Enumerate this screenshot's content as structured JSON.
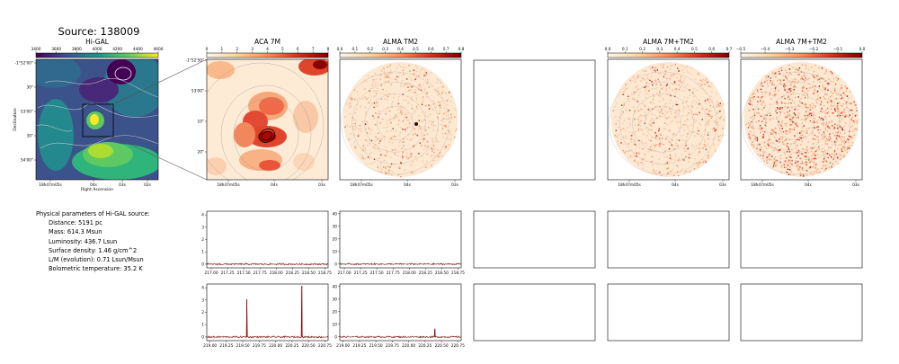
{
  "figure": {
    "source_title": "Source: 138009"
  },
  "physical_params": {
    "heading": "Physical parameters of Hi-GAL source:",
    "items": [
      "Distance: 5191 pc",
      "Mass: 614.3 Msun",
      "Luminosity: 436.7 Lsun",
      "Surface density: 1.46 g/cm^2",
      "L/M (evolution): 0.71 Lsun/Msun",
      "Bolometric temperature: 35.2 K"
    ]
  },
  "chart_data": [
    {
      "type": "heatmap",
      "title": "Hi-GAL",
      "colorbar": {
        "ticks": [
          "3400",
          "3600",
          "3800",
          "4000",
          "4200",
          "4400",
          "4600"
        ],
        "cmap": "viridis"
      },
      "y_ticks": [
        "-1°52'00\"",
        "30\"",
        "53'00\"",
        "30\"",
        "54'00\""
      ],
      "x_ticks": [
        "18h47m05s",
        "04s",
        "03s",
        "02s"
      ],
      "xlabel": "Right Ascension",
      "ylabel": "Declination"
    },
    {
      "type": "heatmap",
      "title": "ACA 7M",
      "colorbar": {
        "ticks": [
          "0",
          "1",
          "2",
          "3",
          "4",
          "5",
          "6",
          "7",
          "8"
        ],
        "cmap": "OrRd"
      },
      "y_ticks": [
        "-1°52'50\"",
        "53'00\"",
        "10\"",
        "20\""
      ],
      "x_ticks": [
        "18h47m05s",
        "04s",
        "03s"
      ]
    },
    {
      "type": "heatmap",
      "title": "ALMA TM2",
      "colorbar": {
        "ticks": [
          "0.0",
          "0.1",
          "0.2",
          "0.3",
          "0.4",
          "0.5",
          "0.6",
          "0.7",
          "0.8"
        ],
        "cmap": "OrRd"
      },
      "x_ticks": [
        "18h47m05s",
        "04s",
        "03s"
      ]
    },
    {
      "type": "heatmap",
      "title": "",
      "note": "empty panel"
    },
    {
      "type": "heatmap",
      "title": "ALMA 7M+TM2",
      "colorbar": {
        "ticks": [
          "0.0",
          "0.1",
          "0.2",
          "0.3",
          "0.4",
          "0.5",
          "0.6",
          "0.7"
        ],
        "cmap": "OrRd"
      },
      "x_ticks": [
        "18h47m05s",
        "04s",
        "03s"
      ]
    },
    {
      "type": "heatmap",
      "title": "ALMA 7M+TM2",
      "colorbar": {
        "ticks": [
          "−0.5",
          "−0.4",
          "−0.3",
          "−0.2",
          "−0.1",
          "0.0"
        ],
        "cmap": "OrRd"
      },
      "x_ticks": [
        "18h47m05s",
        "04s",
        "03s"
      ]
    },
    {
      "type": "line",
      "name": "ACA 7M spectrum 1",
      "xlim": [
        216.93,
        218.8
      ],
      "ylim": [
        -0.3,
        4.3
      ],
      "x_ticks": [
        "217.00",
        "217.25",
        "217.50",
        "217.75",
        "218.00",
        "218.25",
        "218.50",
        "218.75"
      ],
      "y_ticks": [
        "0",
        "1",
        "2",
        "3",
        "4"
      ],
      "noise": 0.07,
      "peaks": []
    },
    {
      "type": "line",
      "name": "ALMA TM2 spectrum 1",
      "xlim": [
        216.93,
        218.8
      ],
      "ylim": [
        -3,
        42
      ],
      "x_ticks": [
        "217.00",
        "217.25",
        "217.50",
        "217.75",
        "218.00",
        "218.25",
        "218.50",
        "218.75"
      ],
      "y_ticks": [
        "0",
        "10",
        "20",
        "30",
        "40"
      ],
      "noise": 0.6,
      "peaks": []
    },
    {
      "type": "line",
      "name": "ACA 7M spectrum 2",
      "xlim": [
        218.95,
        220.8
      ],
      "ylim": [
        -0.3,
        4.3
      ],
      "x_ticks": [
        "219.00",
        "219.25",
        "219.50",
        "219.75",
        "220.00",
        "220.25",
        "220.50",
        "220.75"
      ],
      "y_ticks": [
        "0",
        "1",
        "2",
        "3",
        "4"
      ],
      "noise": 0.07,
      "peaks": [
        {
          "x": 219.56,
          "y": 3.05
        },
        {
          "x": 220.4,
          "y": 4.15
        }
      ]
    },
    {
      "type": "line",
      "name": "ALMA TM2 spectrum 2",
      "xlim": [
        218.95,
        220.8
      ],
      "ylim": [
        -3,
        42
      ],
      "x_ticks": [
        "219.00",
        "219.25",
        "219.50",
        "219.75",
        "220.00",
        "220.25",
        "220.50",
        "220.75"
      ],
      "y_ticks": [
        "0",
        "10",
        "20",
        "30",
        "40"
      ],
      "noise": 0.6,
      "peaks": [
        {
          "x": 220.4,
          "y": 6.5
        }
      ]
    }
  ]
}
